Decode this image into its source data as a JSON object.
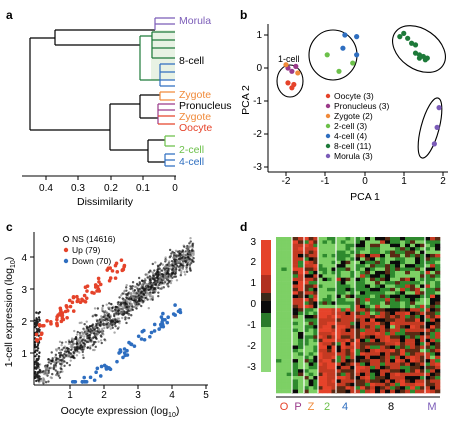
{
  "panels": {
    "a": {
      "label": "a",
      "xlabel": "Dissimilarity",
      "xticks": [
        "0.4",
        "0.3",
        "0.2",
        "0.1",
        "0"
      ],
      "leaves": [
        {
          "text": "Morula",
          "color": "#7b5cb8"
        },
        {
          "text": "8-cell",
          "color": "#000000"
        },
        {
          "text": "Zygote",
          "color": "#f08a3a"
        },
        {
          "text": "Pronucleus",
          "color": "#000000"
        },
        {
          "text": "Zygote",
          "color": "#f08a3a"
        },
        {
          "text": "Oocyte",
          "color": "#e5432a"
        },
        {
          "text": "2-cell",
          "color": "#6cc04a"
        },
        {
          "text": "4-cell",
          "color": "#2e6ec0"
        }
      ]
    },
    "b": {
      "label": "b",
      "xlabel": "PCA 1",
      "ylabel": "PCA 2",
      "xticks": [
        "-2",
        "-1",
        "0",
        "1",
        "2"
      ],
      "yticks": [
        "1",
        "0",
        "-1",
        "-2",
        "-3"
      ],
      "annotation": "1-cell",
      "legend": [
        {
          "text": "Oocyte (3)",
          "color": "#e5432a"
        },
        {
          "text": "Pronucleus (3)",
          "color": "#9a3a8a"
        },
        {
          "text": "Zygote (2)",
          "color": "#f08a3a"
        },
        {
          "text": "2-cell (3)",
          "color": "#6cc04a"
        },
        {
          "text": "4-cell (4)",
          "color": "#2e6ec0"
        },
        {
          "text": "8-cell (11)",
          "color": "#1e7a3a"
        },
        {
          "text": "Morula (3)",
          "color": "#7b5cb8"
        }
      ]
    },
    "c": {
      "label": "c",
      "xlabel": "Oocyte expression (log",
      "xlabel_sub": "10",
      "xlabel_end": ")",
      "ylabel": "1-cell expression (log",
      "ylabel_sub": "10",
      "ylabel_end": ")",
      "xticks": [
        "1",
        "2",
        "3",
        "4",
        "5"
      ],
      "yticks": [
        "1",
        "2",
        "3",
        "4"
      ],
      "legend": [
        {
          "text": "NS (14616)",
          "color": "#222222"
        },
        {
          "text": "Up (79)",
          "color": "#e5432a"
        },
        {
          "text": "Down (70)",
          "color": "#2e6ec0"
        }
      ]
    },
    "d": {
      "label": "d",
      "scale_ticks": [
        "3",
        "2",
        "1",
        "0",
        "-1",
        "-2",
        "-3"
      ],
      "columns": [
        {
          "text": "O",
          "color": "#e5432a"
        },
        {
          "text": "P",
          "color": "#9a3a8a"
        },
        {
          "text": "Z",
          "color": "#f08a3a"
        },
        {
          "text": "2",
          "color": "#6cc04a"
        },
        {
          "text": "4",
          "color": "#2e6ec0"
        },
        {
          "text": "8",
          "color": "#000000"
        },
        {
          "text": "M",
          "color": "#7b5cb8"
        }
      ]
    }
  },
  "chart_data": [
    {
      "type": "scatter",
      "panel": "b",
      "xlabel": "PCA 1",
      "ylabel": "PCA 2",
      "xlim": [
        -2.3,
        2.2
      ],
      "ylim": [
        -3.1,
        1.3
      ],
      "series": [
        {
          "name": "Oocyte (3)",
          "color": "#e5432a",
          "x": [
            -1.95,
            -1.8,
            -1.85
          ],
          "y": [
            -0.45,
            -0.5,
            -0.6
          ]
        },
        {
          "name": "Pronucleus (3)",
          "color": "#9a3a8a",
          "x": [
            -1.95,
            -1.85,
            -1.75
          ],
          "y": [
            0.0,
            -0.1,
            0.05
          ]
        },
        {
          "name": "Zygote (2)",
          "color": "#f08a3a",
          "x": [
            -2.0,
            -1.7
          ],
          "y": [
            0.1,
            -0.15
          ]
        },
        {
          "name": "2-cell (3)",
          "color": "#6cc04a",
          "x": [
            -0.95,
            -0.65,
            -0.3
          ],
          "y": [
            0.4,
            -0.1,
            0.15
          ]
        },
        {
          "name": "4-cell (4)",
          "color": "#2e6ec0",
          "x": [
            -0.5,
            -0.2,
            -0.55,
            -0.2
          ],
          "y": [
            1.0,
            0.95,
            0.6,
            0.4
          ]
        },
        {
          "name": "8-cell (11)",
          "color": "#1e7a3a",
          "x": [
            0.9,
            1.0,
            1.1,
            1.2,
            1.3,
            1.3,
            1.4,
            1.4,
            1.5,
            1.55,
            1.6
          ],
          "y": [
            0.95,
            1.05,
            0.9,
            0.75,
            0.7,
            0.45,
            0.4,
            0.3,
            0.35,
            0.25,
            0.3
          ]
        },
        {
          "name": "Morula (3)",
          "color": "#7b5cb8",
          "x": [
            1.9,
            1.85,
            1.78
          ],
          "y": [
            -1.2,
            -1.8,
            -2.3
          ]
        }
      ]
    },
    {
      "type": "scatter",
      "panel": "c",
      "xlabel": "Oocyte expression (log10)",
      "ylabel": "1-cell expression (log10)",
      "xlim": [
        0,
        5
      ],
      "ylim": [
        0,
        4.8
      ],
      "series": [
        {
          "name": "NS (14616)",
          "color": "#222222",
          "x": [
            0.1,
            0.3,
            0.6,
            0.8,
            1.0,
            1.2,
            1.5,
            1.8,
            2.0,
            2.3,
            2.5,
            2.8,
            3.0,
            3.3,
            3.6,
            3.9,
            4.2,
            4.5
          ],
          "y": [
            0.5,
            0.8,
            1.0,
            1.2,
            1.4,
            1.5,
            1.8,
            2.0,
            2.2,
            2.5,
            2.6,
            2.8,
            3.1,
            3.3,
            3.5,
            3.8,
            4.0,
            4.3
          ]
        },
        {
          "name": "Up (79)",
          "color": "#e5432a",
          "x": [
            0.1,
            0.3,
            0.6,
            0.9,
            1.2,
            1.5,
            1.8,
            2.1
          ],
          "y": [
            1.8,
            2.1,
            2.4,
            2.7,
            3.0,
            3.2,
            3.5,
            3.7
          ]
        },
        {
          "name": "Down (70)",
          "color": "#2e6ec0",
          "x": [
            1.2,
            1.6,
            2.0,
            2.4,
            2.8,
            3.2,
            3.6,
            4.3
          ],
          "y": [
            0.2,
            0.4,
            0.6,
            0.9,
            1.2,
            1.6,
            1.9,
            2.3
          ]
        }
      ]
    },
    {
      "type": "heatmap",
      "panel": "d",
      "columns": [
        "O",
        "P",
        "Z",
        "2",
        "4",
        "8",
        "M"
      ],
      "scale": [
        -3,
        3
      ]
    }
  ]
}
